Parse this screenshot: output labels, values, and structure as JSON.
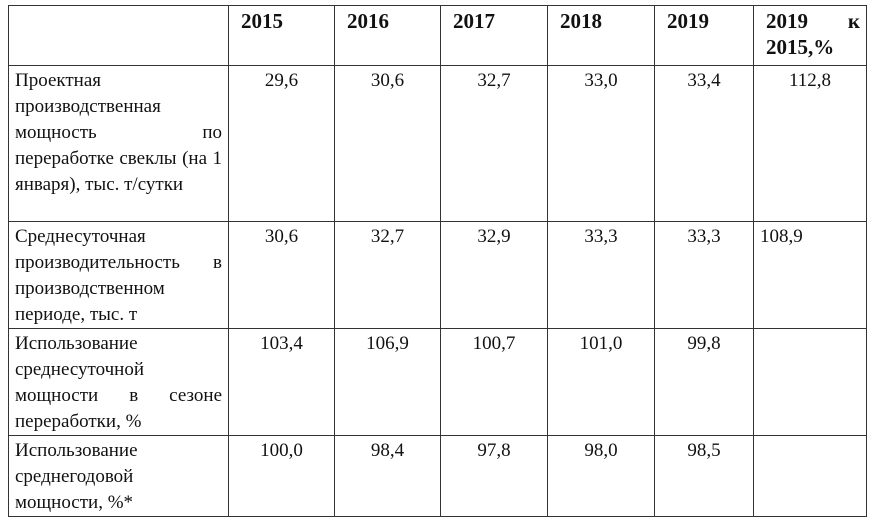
{
  "table": {
    "corner": "",
    "headers": [
      "2015",
      "2016",
      "2017",
      "2018",
      "2019",
      "2019 к 2015,%"
    ],
    "rows": [
      {
        "label": "Проектная производственная мощность по переработке свеклы (на 1 января), тыс. т/сутки",
        "values": [
          "29,6",
          "30,6",
          "32,7",
          "33,0",
          "33,4",
          "112,8"
        ]
      },
      {
        "label": "Среднесуточная производительность в производственном периоде, тыс. т",
        "values": [
          "30,6",
          "32,7",
          "32,9",
          "33,3",
          "33,3",
          "108,9"
        ]
      },
      {
        "label": "Использование среднесуточной мощности в сезоне переработки, %",
        "values": [
          "103,4",
          "106,9",
          "100,7",
          "101,0",
          "99,8",
          ""
        ]
      },
      {
        "label": "Использование среднегодовой мощности, %*",
        "values": [
          "100,0",
          "98,4",
          "97,8",
          "98,0",
          "98,5",
          ""
        ]
      }
    ]
  }
}
